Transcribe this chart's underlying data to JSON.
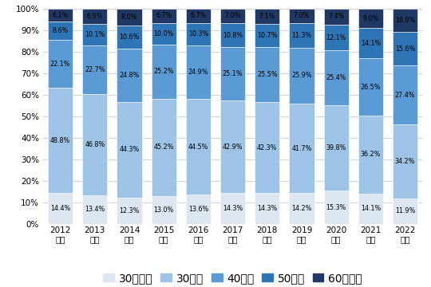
{
  "years_line1": [
    "2012",
    "2013",
    "2014",
    "2015",
    "2016",
    "2017",
    "2018",
    "2019",
    "2020",
    "2021",
    "2022"
  ],
  "years_line2": "年度",
  "categories": [
    "30歳未満",
    "30歳代",
    "40歳代",
    "50歳代",
    "60歳以上"
  ],
  "colors": [
    "#dce6f1",
    "#9dc3e6",
    "#5b9bd5",
    "#2e75b6",
    "#203864"
  ],
  "data": {
    "30歳未満": [
      14.4,
      13.4,
      12.3,
      13.0,
      13.6,
      14.3,
      14.3,
      14.2,
      15.3,
      14.1,
      11.9
    ],
    "30歳代": [
      48.8,
      46.8,
      44.3,
      45.2,
      44.5,
      42.9,
      42.3,
      41.7,
      39.8,
      36.2,
      34.2
    ],
    "40歳代": [
      22.1,
      22.7,
      24.8,
      25.2,
      24.9,
      25.1,
      25.5,
      25.9,
      25.4,
      26.5,
      27.4
    ],
    "50歳代": [
      8.6,
      10.1,
      10.6,
      10.0,
      10.3,
      10.8,
      10.7,
      11.3,
      12.1,
      14.1,
      15.6
    ],
    "60歳以上": [
      6.1,
      6.9,
      8.0,
      6.7,
      6.7,
      7.0,
      7.1,
      7.0,
      7.4,
      9.0,
      10.9
    ]
  },
  "ylim": [
    0,
    100
  ],
  "yticks": [
    0,
    10,
    20,
    30,
    40,
    50,
    60,
    70,
    80,
    90,
    100
  ],
  "background_color": "#ffffff",
  "grid_color": "#c0c0c0",
  "label_fontsize": 5.8,
  "tick_fontsize": 7.5,
  "legend_fontsize": 7.0,
  "bar_width": 0.72
}
